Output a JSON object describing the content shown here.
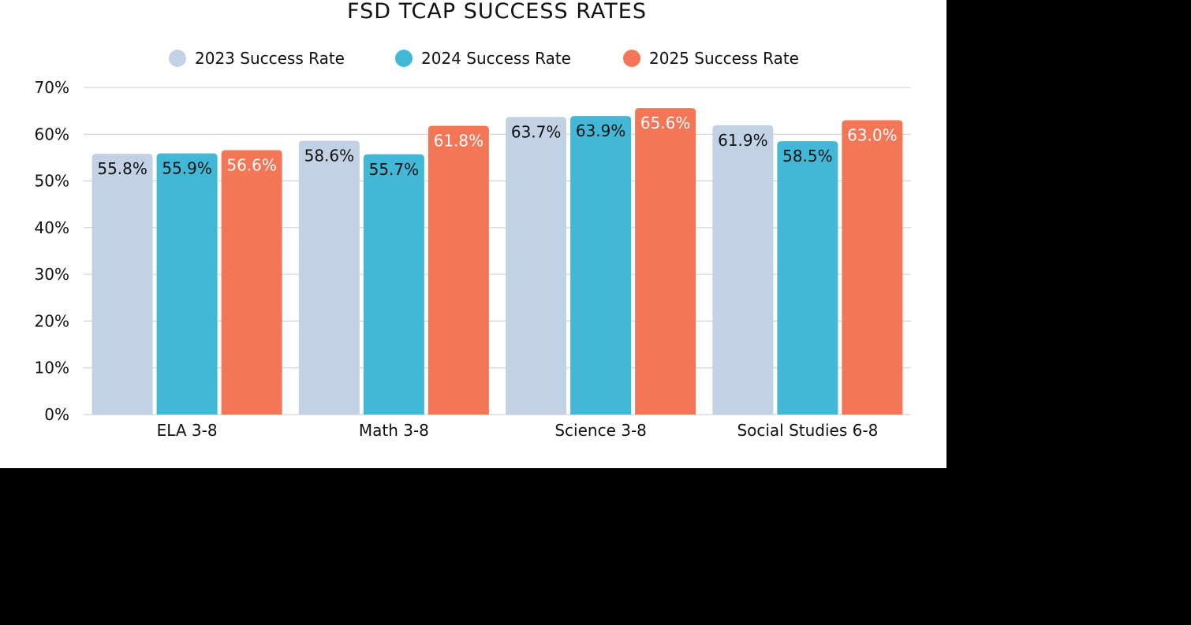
{
  "chart_data": {
    "type": "bar",
    "title": "FSD TCAP SUCCESS RATES",
    "xlabel": "",
    "ylabel": "",
    "ylim": [
      0,
      70
    ],
    "y_ticks": [
      "0%",
      "10%",
      "20%",
      "30%",
      "40%",
      "50%",
      "60%",
      "70%"
    ],
    "grid": true,
    "legend_position": "top-center",
    "categories": [
      "ELA 3-8",
      "Math 3-8",
      "Science 3-8",
      "Social Studies 6-8"
    ],
    "series": [
      {
        "name": "2023 Success Rate",
        "color": "#c2d2e4",
        "label_color": "#111111",
        "values": [
          55.8,
          58.6,
          63.7,
          61.9
        ],
        "labels": [
          "55.8%",
          "58.6%",
          "63.7%",
          "61.9%"
        ]
      },
      {
        "name": "2024 Success Rate",
        "color": "#42b8d6",
        "label_color": "#111111",
        "values": [
          55.9,
          55.7,
          63.9,
          58.5
        ],
        "labels": [
          "55.9%",
          "55.7%",
          "63.9%",
          "58.5%"
        ]
      },
      {
        "name": "2025 Success Rate",
        "color": "#f37657",
        "label_color": "#ffffff",
        "values": [
          56.6,
          61.8,
          65.6,
          63.0
        ],
        "labels": [
          "56.6%",
          "61.8%",
          "65.6%",
          "63.0%"
        ]
      }
    ]
  }
}
